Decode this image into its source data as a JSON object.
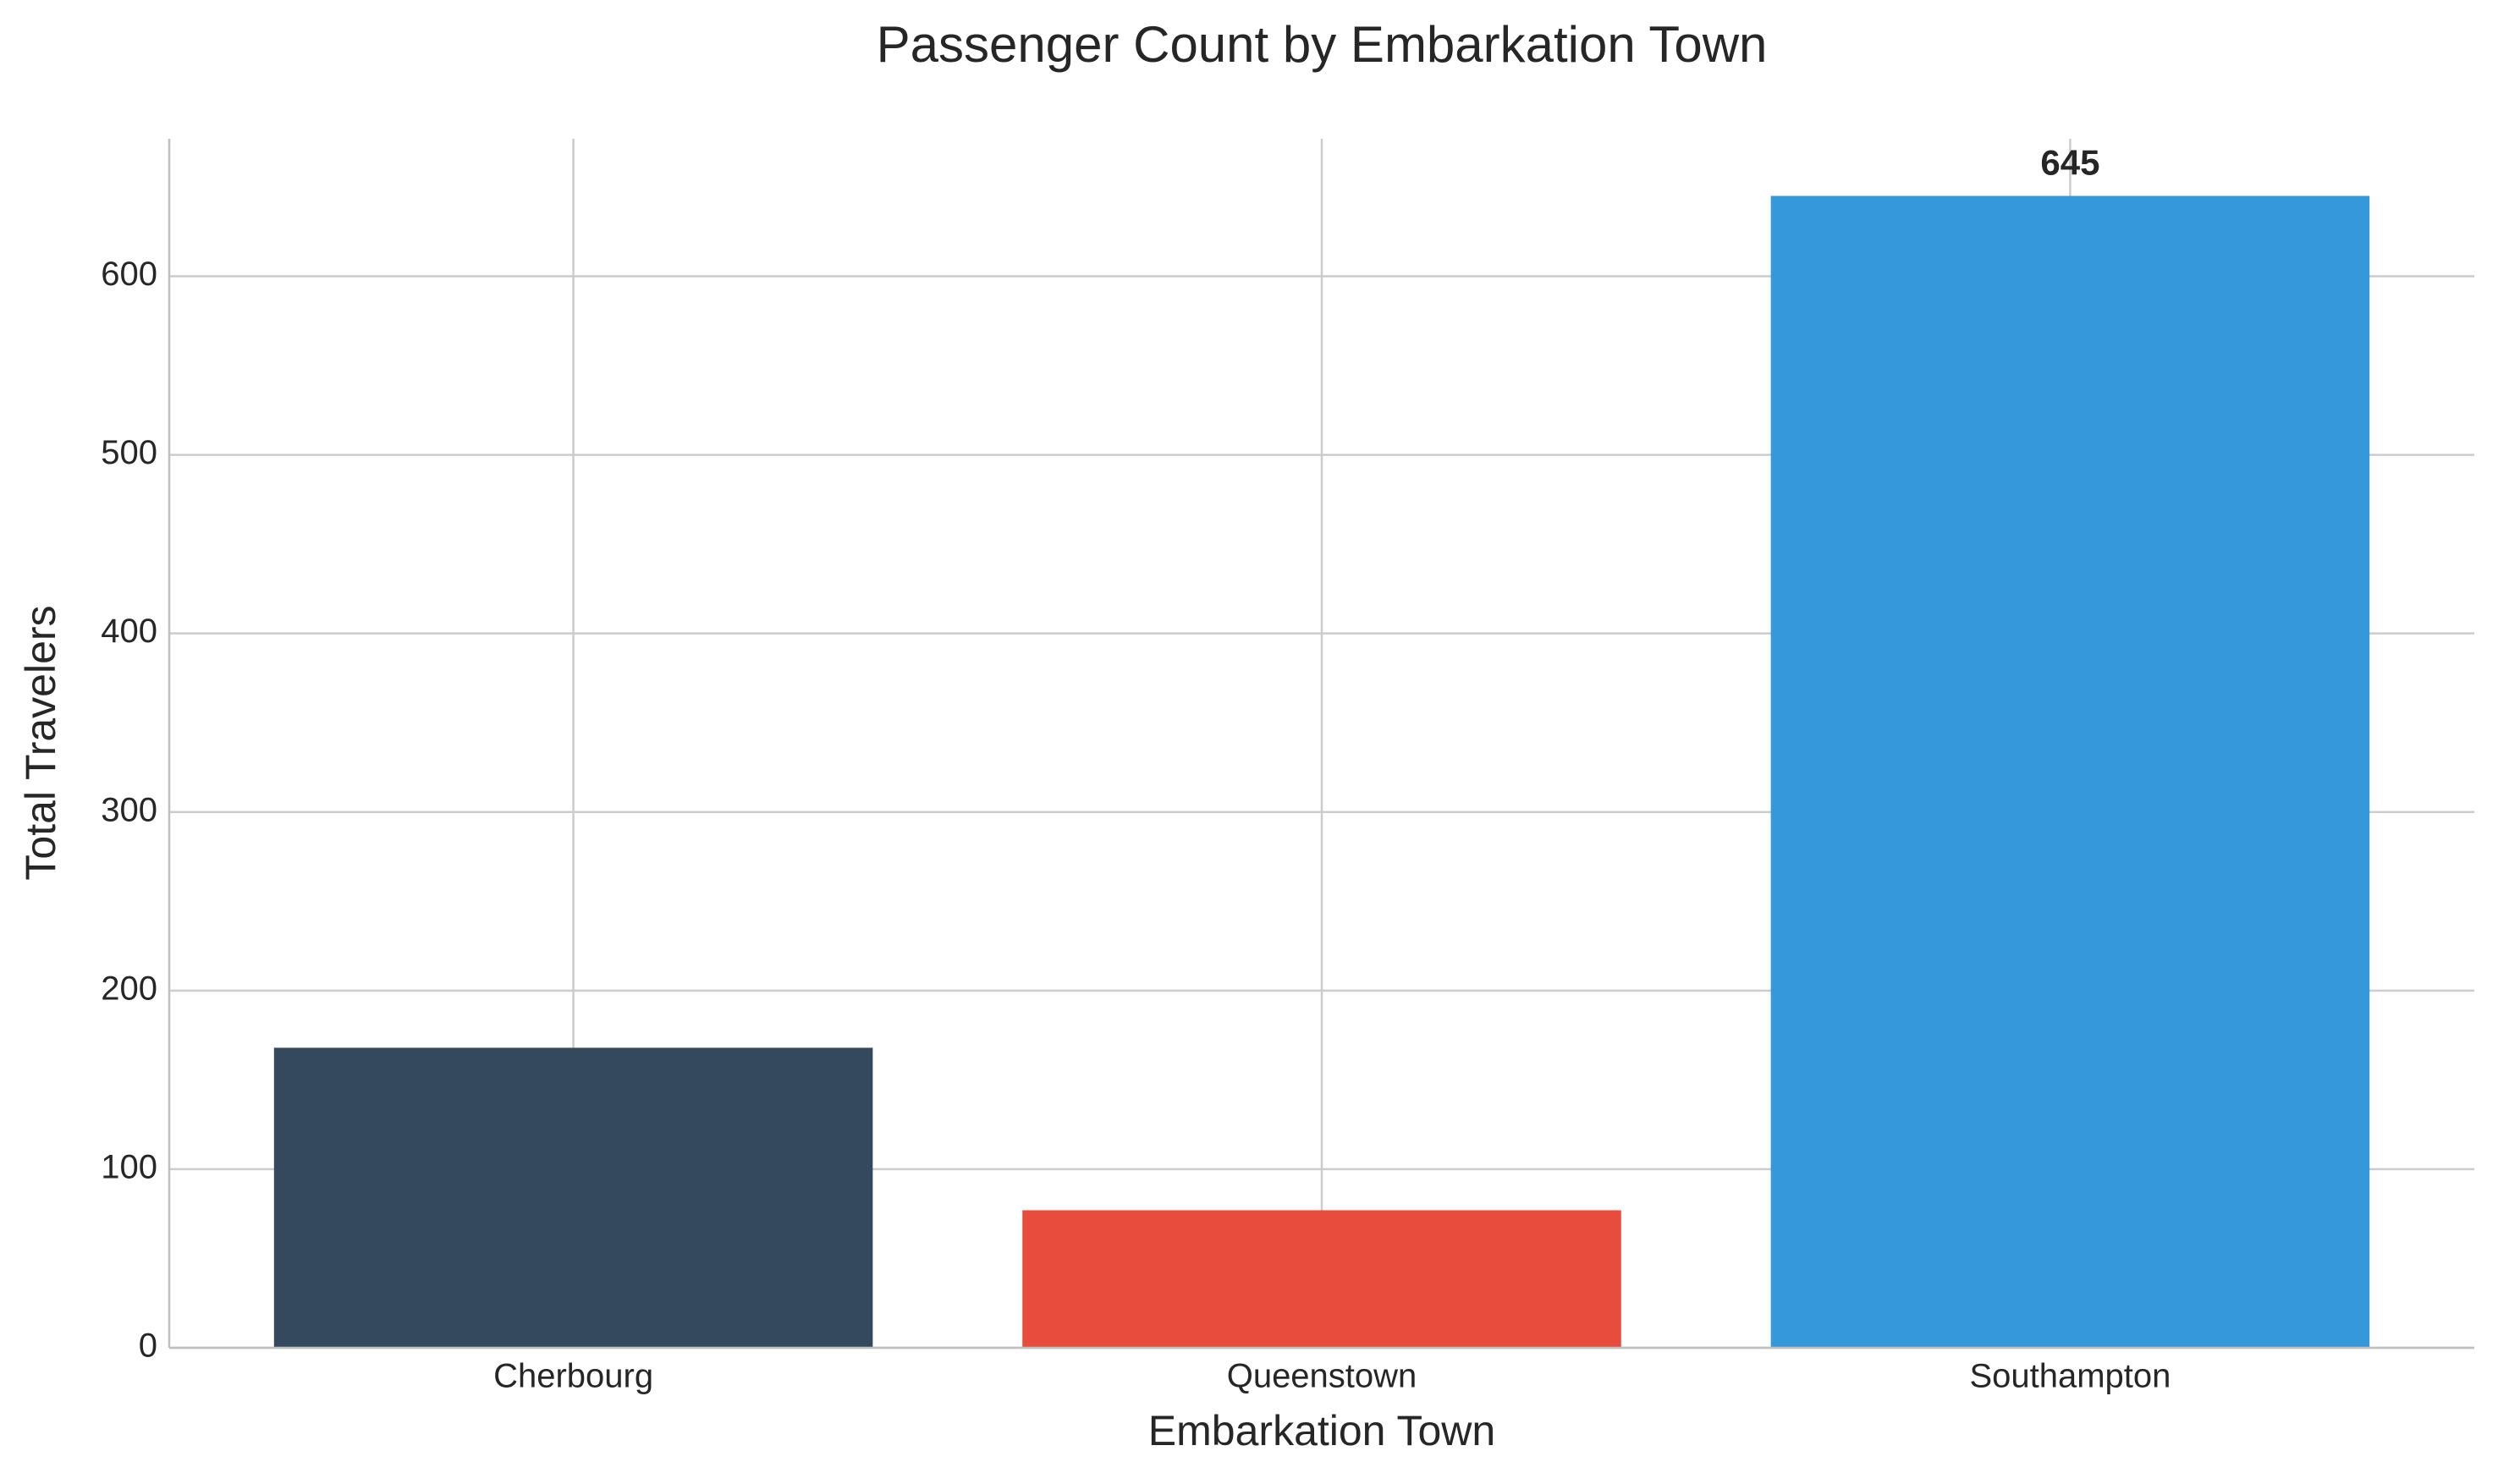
{
  "chart_data": {
    "type": "bar",
    "title": "Passenger Count by Embarkation Town",
    "x_label": "Embarkation Town",
    "y_label": "Total Travelers",
    "categories": [
      "Cherbourg",
      "Queenstown",
      "Southampton"
    ],
    "values": [
      168,
      77,
      645
    ],
    "value_labels": [
      null,
      null,
      "645"
    ],
    "colors": [
      "#34495e",
      "#e74c3c",
      "#3498db"
    ],
    "ylim": [
      0,
      677
    ],
    "yticks": [
      0,
      100,
      200,
      300,
      400,
      500,
      600
    ],
    "grid": true
  }
}
